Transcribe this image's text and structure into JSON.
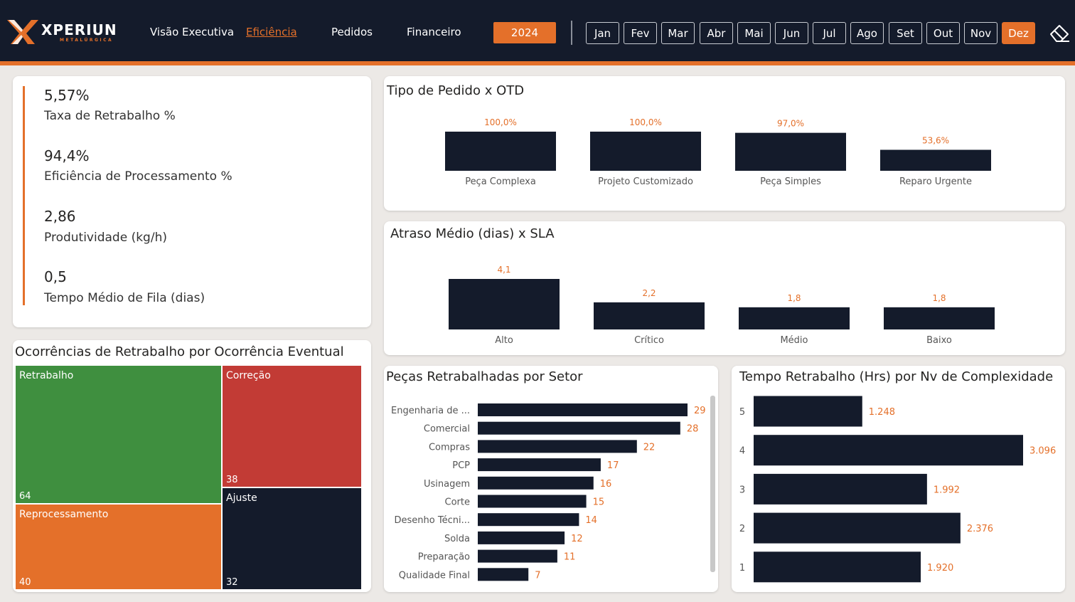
{
  "brand": {
    "name": "XPERIUN",
    "sub": "METALÚRGICA"
  },
  "nav": [
    {
      "label": "Visão Executiva",
      "active": false
    },
    {
      "label": "Eficiência",
      "active": true
    },
    {
      "label": "Pedidos",
      "active": false
    },
    {
      "label": "Financeiro",
      "active": false
    }
  ],
  "year": "2024",
  "months": [
    "Jan",
    "Fev",
    "Mar",
    "Abr",
    "Mai",
    "Jun",
    "Jul",
    "Ago",
    "Set",
    "Out",
    "Nov",
    "Dez"
  ],
  "selected_month": "Dez",
  "colors": {
    "navy": "#141b2b",
    "orange": "#e4702a",
    "green": "#3f8f3f",
    "red": "#c23b35"
  },
  "kpis": [
    {
      "value": "5,57%",
      "label": "Taxa de Retrabalho %"
    },
    {
      "value": "94,4%",
      "label": "Eficiência de Processamento %"
    },
    {
      "value": "2,86",
      "label": "Produtividade (kg/h)"
    },
    {
      "value": "0,5",
      "label": "Tempo Médio de Fila (dias)"
    }
  ],
  "chart_data": [
    {
      "type": "bar",
      "title": "Tipo de Pedido x OTD",
      "categories": [
        "Peça Complexa",
        "Projeto Customizado",
        "Peça Simples",
        "Reparo Urgente"
      ],
      "values": [
        100.0,
        100.0,
        97.0,
        53.6
      ],
      "data_labels": [
        "100,0%",
        "100,0%",
        "97,0%",
        "53,6%"
      ]
    },
    {
      "type": "bar",
      "title": "Atraso Médio (dias) x SLA",
      "categories": [
        "Alto",
        "Crítico",
        "Médio",
        "Baixo"
      ],
      "values": [
        4.1,
        2.2,
        1.8,
        1.8
      ],
      "data_labels": [
        "4,1",
        "2,2",
        "1,8",
        "1,8"
      ]
    },
    {
      "type": "bar",
      "orientation": "horizontal",
      "title": "Peças Retrabalhadas por Setor",
      "categories": [
        "Engenharia de ...",
        "Comercial",
        "Compras",
        "PCP",
        "Usinagem",
        "Corte",
        "Desenho Técni...",
        "Solda",
        "Preparação",
        "Qualidade Final"
      ],
      "values": [
        29,
        28,
        22,
        17,
        16,
        15,
        14,
        12,
        11,
        7
      ]
    },
    {
      "type": "bar",
      "orientation": "horizontal",
      "title": "Tempo Retrabalho (Hrs) por Nv de Complexidade",
      "categories": [
        "5",
        "4",
        "3",
        "2",
        "1"
      ],
      "values": [
        1248,
        3096,
        1992,
        2376,
        1920
      ],
      "data_labels": [
        "1.248",
        "3.096",
        "1.992",
        "2.376",
        "1.920"
      ]
    },
    {
      "type": "treemap",
      "title": "Ocorrências de Retrabalho por Ocorrência Eventual",
      "items": [
        {
          "label": "Retrabalho",
          "value": 64
        },
        {
          "label": "Reprocessamento",
          "value": 40
        },
        {
          "label": "Correção",
          "value": 38
        },
        {
          "label": "Ajuste",
          "value": 32
        }
      ]
    }
  ]
}
